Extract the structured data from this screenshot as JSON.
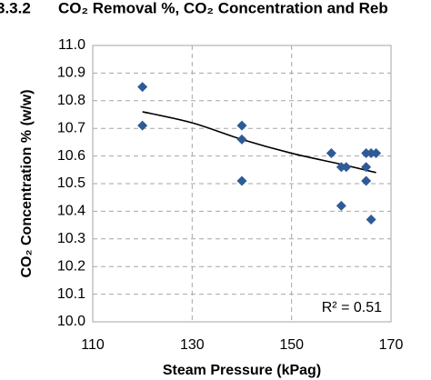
{
  "heading": {
    "number": "3.3.2",
    "text": "CO₂ Removal %, CO₂ Concentration and Reb"
  },
  "chart_data": {
    "type": "scatter",
    "x_label": "Steam Pressure (kPag)",
    "y_label": "CO₂ Concentration % (w/w)",
    "annotation": "R² = 0.51",
    "series": [
      {
        "color": "#2e5b96",
        "x": [
          120,
          120,
          140,
          140,
          140,
          158,
          160,
          161,
          160,
          165,
          166,
          167,
          165,
          165,
          166
        ],
        "values": [
          10.85,
          10.71,
          10.71,
          10.66,
          10.51,
          10.61,
          10.56,
          10.56,
          10.42,
          10.61,
          10.61,
          10.61,
          10.56,
          10.51,
          10.37
        ]
      }
    ],
    "trendline": {
      "color": "#000000",
      "x": [
        120,
        130,
        140,
        150,
        160,
        167
      ],
      "values": [
        10.76,
        10.72,
        10.66,
        10.61,
        10.57,
        10.54
      ]
    },
    "xlim": [
      110,
      170
    ],
    "xticks": [
      110,
      130,
      150,
      170
    ],
    "ylim": [
      10.0,
      11.0
    ],
    "yticks": [
      {
        "value": 10.0,
        "label": "10.0"
      },
      10.1,
      10.2,
      10.3,
      10.4,
      10.5,
      10.6,
      10.7,
      10.8,
      10.9,
      {
        "value": 11.0,
        "label": "11.0"
      }
    ],
    "grid": true
  }
}
